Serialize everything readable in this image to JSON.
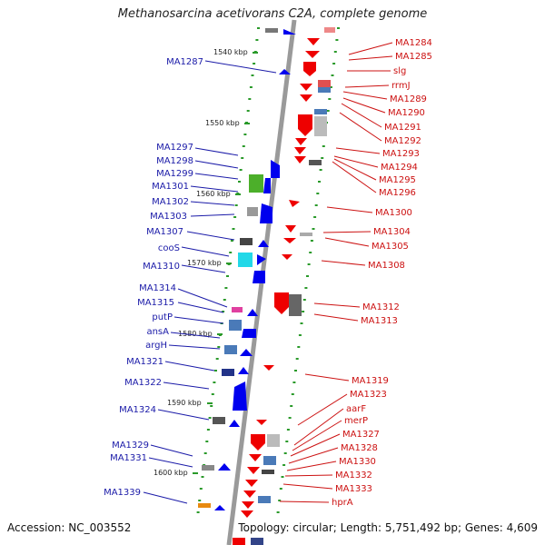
{
  "title": "Methanosarcina acetivorans C2A, complete genome",
  "footer": {
    "accession": "Accession: NC_003552",
    "topology": "Topology: circular; Length: 5,751,492 bp; Genes: 4,609"
  },
  "kbp_ticks": [
    "1540 kbp",
    "1550 kbp",
    "1560 kbp",
    "1570 kbp",
    "1580 kbp",
    "1590 kbp",
    "1600 kbp"
  ],
  "left_genes": [
    "MA1287",
    "MA1297",
    "MA1298",
    "MA1299",
    "MA1301",
    "MA1302",
    "MA1303",
    "MA1307",
    "cooS",
    "MA1310",
    "MA1314",
    "MA1315",
    "putP",
    "ansA",
    "argH",
    "MA1321",
    "MA1322",
    "MA1324",
    "MA1329",
    "MA1331",
    "MA1339"
  ],
  "right_genes": [
    "MA1284",
    "MA1285",
    "slg",
    "rrmJ",
    "MA1289",
    "MA1290",
    "MA1291",
    "MA1292",
    "MA1293",
    "MA1294",
    "MA1295",
    "MA1296",
    "MA1300",
    "MA1304",
    "MA1305",
    "MA1308",
    "MA1312",
    "MA1313",
    "MA1319",
    "MA1323",
    "aarF",
    "merP",
    "MA1327",
    "MA1328",
    "MA1330",
    "MA1332",
    "MA1333",
    "hprA"
  ],
  "colors": {
    "forward_strand": "#0000ee",
    "reverse_strand": "#ee0000",
    "left_label": "#1a1aa8",
    "right_label": "#cc1111",
    "axis": "#999999",
    "tick_marks": "#2a9a2a"
  }
}
